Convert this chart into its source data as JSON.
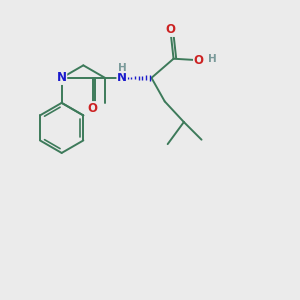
{
  "bg_color": "#ebebeb",
  "bond_color": "#3d7a5a",
  "bond_width": 1.4,
  "atom_colors": {
    "N": "#1a1acc",
    "O": "#cc2222",
    "H": "#7a9a9a",
    "C": "#3d7a5a"
  },
  "font_size_atoms": 8.5,
  "font_size_H": 7.5,
  "fig_w": 3.0,
  "fig_h": 3.0,
  "dpi": 100,
  "xlim": [
    0,
    10
  ],
  "ylim": [
    0,
    10
  ]
}
